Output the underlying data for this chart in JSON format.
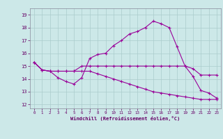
{
  "bg_color": "#cce8e8",
  "line_color": "#990099",
  "grid_color": "#aacccc",
  "xlabel": "Windchill (Refroidissement éolien,°C)",
  "ylabel_ticks": [
    12,
    13,
    14,
    15,
    16,
    17,
    18,
    19
  ],
  "xlabel_ticks": [
    0,
    1,
    2,
    3,
    4,
    5,
    6,
    7,
    8,
    9,
    10,
    11,
    12,
    13,
    14,
    15,
    16,
    17,
    18,
    19,
    20,
    21,
    22,
    23
  ],
  "xlim": [
    -0.5,
    23.5
  ],
  "ylim": [
    11.7,
    19.5
  ],
  "series": [
    [
      15.3,
      14.7,
      14.6,
      14.1,
      13.8,
      13.6,
      14.1,
      15.6,
      15.9,
      16.0,
      16.6,
      17.0,
      17.5,
      17.7,
      18.0,
      18.5,
      18.3,
      18.0,
      16.5,
      15.0,
      14.2,
      13.1,
      12.9,
      12.5
    ],
    [
      15.3,
      14.7,
      14.6,
      14.6,
      14.6,
      14.6,
      15.0,
      15.0,
      15.0,
      15.0,
      15.0,
      15.0,
      15.0,
      15.0,
      15.0,
      15.0,
      15.0,
      15.0,
      15.0,
      15.0,
      14.8,
      14.3,
      14.3,
      14.3
    ],
    [
      15.3,
      14.7,
      14.6,
      14.6,
      14.6,
      14.6,
      14.6,
      14.6,
      14.4,
      14.2,
      14.0,
      13.8,
      13.6,
      13.4,
      13.2,
      13.0,
      12.9,
      12.8,
      12.7,
      12.6,
      12.5,
      12.4,
      12.4,
      12.4
    ]
  ]
}
